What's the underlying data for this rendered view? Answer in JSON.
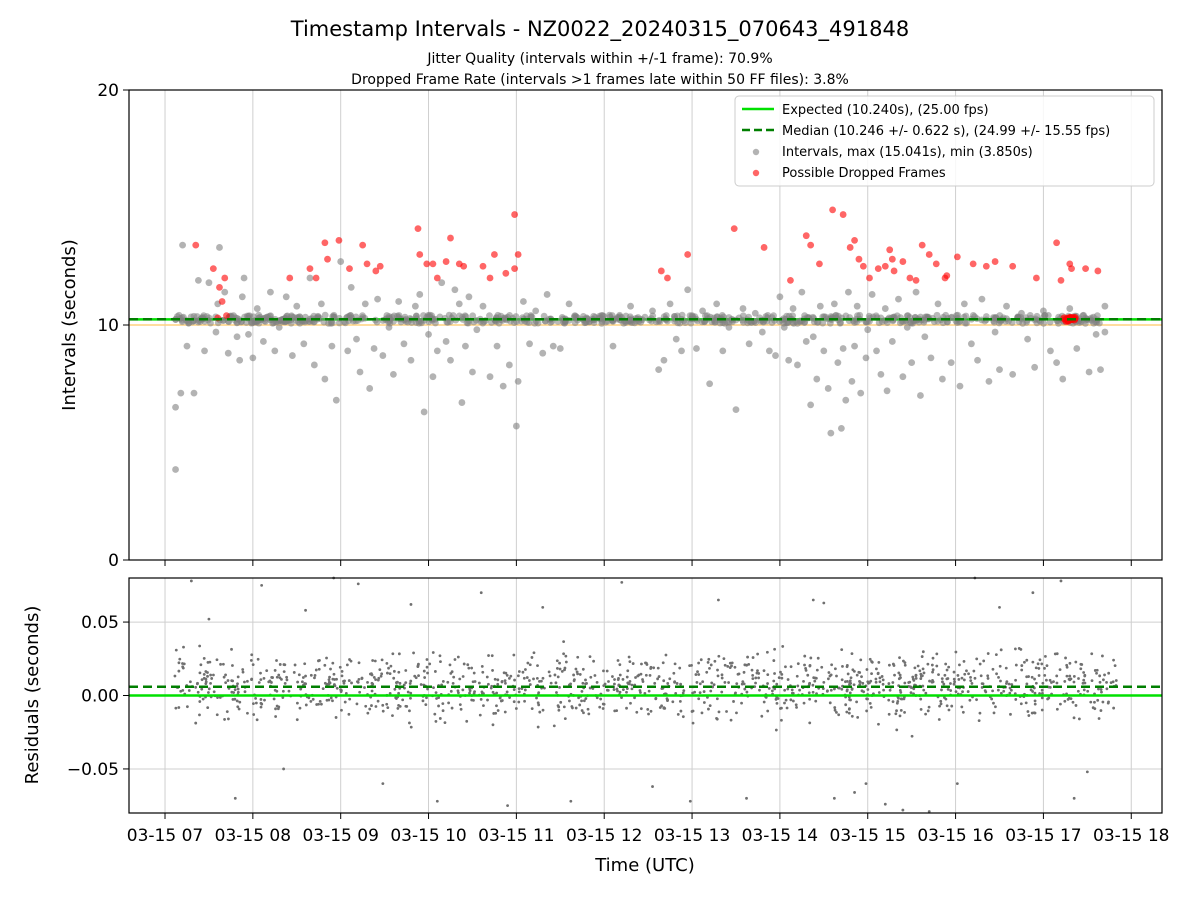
{
  "chart_data": [
    {
      "type": "scatter",
      "title": "Timestamp Intervals - NZ0022_20240315_070643_491848",
      "subtitle_1": "Jitter Quality (intervals within +/-1 frame): 70.9%",
      "subtitle_2": "Dropped Frame Rate (intervals >1 frames late within 50 FF files): 3.8%",
      "ylabel": "Intervals (seconds)",
      "ylim": [
        0,
        20
      ],
      "yticks": [
        0,
        10,
        20
      ],
      "xlim": [
        6.59,
        18.35
      ],
      "grid": "vertical",
      "legend_position": "top-right",
      "expected": {
        "value": 10.24,
        "label": "Expected (10.240s), (25.00 fps)",
        "color": "#00e000"
      },
      "median": {
        "value": 10.246,
        "label": "Median (10.246 +/- 0.622 s), (24.99 +/- 15.55 fps)",
        "color": "#007f00"
      },
      "threshold": {
        "value": 10.0,
        "color": "#ffd27f"
      },
      "intervals_series": {
        "label": "Intervals, max (15.041s), min (3.850s)",
        "color": "#808080",
        "points": [
          [
            7.12,
            3.85
          ],
          [
            7.12,
            6.5
          ],
          [
            7.18,
            7.1
          ],
          [
            7.2,
            13.4
          ],
          [
            7.25,
            9.1
          ],
          [
            7.33,
            7.1
          ],
          [
            7.38,
            11.9
          ],
          [
            7.45,
            8.9
          ],
          [
            7.5,
            11.8
          ],
          [
            7.58,
            9.7
          ],
          [
            7.6,
            10.9
          ],
          [
            7.62,
            13.3
          ],
          [
            7.68,
            11.4
          ],
          [
            7.72,
            8.8
          ],
          [
            7.78,
            10.4
          ],
          [
            7.82,
            9.5
          ],
          [
            7.85,
            8.5
          ],
          [
            7.88,
            11.2
          ],
          [
            7.9,
            12.0
          ],
          [
            7.95,
            9.6
          ],
          [
            8.0,
            8.6
          ],
          [
            8.05,
            10.7
          ],
          [
            8.12,
            9.3
          ],
          [
            8.2,
            11.4
          ],
          [
            8.25,
            8.9
          ],
          [
            8.3,
            9.9
          ],
          [
            8.38,
            11.2
          ],
          [
            8.45,
            8.7
          ],
          [
            8.5,
            10.8
          ],
          [
            8.58,
            9.2
          ],
          [
            8.65,
            12.0
          ],
          [
            8.7,
            8.3
          ],
          [
            8.78,
            10.9
          ],
          [
            8.82,
            7.7
          ],
          [
            8.9,
            9.1
          ],
          [
            8.95,
            6.8
          ],
          [
            9.0,
            12.7
          ],
          [
            9.08,
            8.9
          ],
          [
            9.12,
            11.6
          ],
          [
            9.18,
            9.4
          ],
          [
            9.22,
            8.0
          ],
          [
            9.28,
            10.9
          ],
          [
            9.33,
            7.3
          ],
          [
            9.38,
            9.0
          ],
          [
            9.42,
            11.1
          ],
          [
            9.48,
            8.7
          ],
          [
            9.55,
            9.9
          ],
          [
            9.6,
            7.9
          ],
          [
            9.66,
            11.0
          ],
          [
            9.72,
            9.2
          ],
          [
            9.8,
            8.5
          ],
          [
            9.85,
            10.8
          ],
          [
            9.9,
            11.3
          ],
          [
            9.95,
            6.3
          ],
          [
            10.0,
            9.6
          ],
          [
            10.05,
            7.8
          ],
          [
            10.1,
            8.9
          ],
          [
            10.15,
            11.8
          ],
          [
            10.2,
            9.3
          ],
          [
            10.25,
            8.5
          ],
          [
            10.3,
            11.5
          ],
          [
            10.35,
            10.9
          ],
          [
            10.38,
            6.7
          ],
          [
            10.42,
            9.1
          ],
          [
            10.46,
            11.2
          ],
          [
            10.5,
            8.0
          ],
          [
            10.55,
            9.8
          ],
          [
            10.62,
            10.8
          ],
          [
            10.7,
            7.8
          ],
          [
            10.78,
            9.1
          ],
          [
            10.85,
            7.4
          ],
          [
            10.92,
            8.3
          ],
          [
            11.0,
            5.7
          ],
          [
            11.02,
            7.6
          ],
          [
            11.08,
            11.0
          ],
          [
            11.15,
            9.2
          ],
          [
            11.22,
            10.6
          ],
          [
            11.3,
            8.8
          ],
          [
            11.35,
            11.3
          ],
          [
            11.42,
            9.1
          ],
          [
            11.5,
            9.0
          ],
          [
            11.6,
            10.9
          ],
          [
            11.8,
            10.3
          ],
          [
            12.1,
            9.1
          ],
          [
            12.3,
            10.8
          ],
          [
            12.55,
            10.6
          ],
          [
            12.62,
            8.1
          ],
          [
            12.68,
            8.5
          ],
          [
            12.75,
            10.9
          ],
          [
            12.82,
            9.4
          ],
          [
            12.88,
            8.9
          ],
          [
            12.95,
            11.5
          ],
          [
            13.0,
            10.4
          ],
          [
            13.05,
            9.0
          ],
          [
            13.12,
            10.6
          ],
          [
            13.2,
            7.5
          ],
          [
            13.28,
            10.9
          ],
          [
            13.35,
            8.9
          ],
          [
            13.42,
            9.9
          ],
          [
            13.5,
            6.4
          ],
          [
            13.58,
            10.7
          ],
          [
            13.65,
            9.2
          ],
          [
            13.72,
            10.5
          ],
          [
            13.8,
            9.7
          ],
          [
            13.88,
            8.9
          ],
          [
            13.95,
            8.7
          ],
          [
            14.0,
            11.2
          ],
          [
            14.05,
            9.9
          ],
          [
            14.1,
            8.5
          ],
          [
            14.15,
            10.7
          ],
          [
            14.2,
            8.3
          ],
          [
            14.25,
            11.4
          ],
          [
            14.3,
            9.3
          ],
          [
            14.35,
            6.6
          ],
          [
            14.38,
            9.5
          ],
          [
            14.42,
            7.7
          ],
          [
            14.46,
            10.8
          ],
          [
            14.5,
            8.9
          ],
          [
            14.55,
            7.3
          ],
          [
            14.58,
            5.4
          ],
          [
            14.62,
            10.9
          ],
          [
            14.66,
            8.4
          ],
          [
            14.7,
            5.6
          ],
          [
            14.72,
            9.0
          ],
          [
            14.75,
            6.8
          ],
          [
            14.78,
            11.4
          ],
          [
            14.82,
            7.6
          ],
          [
            14.85,
            9.1
          ],
          [
            14.88,
            10.8
          ],
          [
            14.92,
            7.1
          ],
          [
            14.98,
            8.6
          ],
          [
            15.0,
            9.8
          ],
          [
            15.05,
            11.3
          ],
          [
            15.1,
            8.9
          ],
          [
            15.15,
            7.9
          ],
          [
            15.2,
            10.7
          ],
          [
            15.22,
            7.2
          ],
          [
            15.28,
            9.3
          ],
          [
            15.35,
            11.1
          ],
          [
            15.4,
            7.8
          ],
          [
            15.45,
            9.9
          ],
          [
            15.5,
            8.4
          ],
          [
            15.55,
            11.4
          ],
          [
            15.6,
            7.0
          ],
          [
            15.65,
            9.5
          ],
          [
            15.72,
            8.6
          ],
          [
            15.8,
            10.9
          ],
          [
            15.85,
            7.7
          ],
          [
            15.95,
            8.4
          ],
          [
            16.05,
            7.4
          ],
          [
            16.1,
            10.9
          ],
          [
            16.18,
            9.2
          ],
          [
            16.25,
            8.5
          ],
          [
            16.3,
            11.1
          ],
          [
            16.38,
            7.6
          ],
          [
            16.45,
            9.7
          ],
          [
            16.5,
            8.1
          ],
          [
            16.58,
            10.8
          ],
          [
            16.65,
            7.9
          ],
          [
            16.75,
            10.5
          ],
          [
            16.82,
            9.4
          ],
          [
            16.9,
            8.2
          ],
          [
            17.0,
            10.6
          ],
          [
            17.08,
            8.9
          ],
          [
            17.15,
            8.4
          ],
          [
            17.22,
            7.7
          ],
          [
            17.3,
            10.7
          ],
          [
            17.38,
            9.0
          ],
          [
            17.45,
            10.4
          ],
          [
            17.52,
            8.0
          ],
          [
            17.6,
            9.6
          ],
          [
            17.65,
            8.1
          ],
          [
            17.7,
            10.8
          ],
          [
            17.7,
            9.7
          ]
        ]
      },
      "dropped_series": {
        "label": "Possible Dropped Frames",
        "color": "#ff0000",
        "points": [
          [
            7.35,
            13.4
          ],
          [
            7.55,
            12.4
          ],
          [
            7.6,
            10.3
          ],
          [
            7.62,
            11.6
          ],
          [
            7.65,
            11.0
          ],
          [
            7.68,
            12.0
          ],
          [
            7.7,
            10.4
          ],
          [
            8.42,
            12.0
          ],
          [
            8.65,
            12.4
          ],
          [
            8.72,
            12.0
          ],
          [
            8.82,
            13.5
          ],
          [
            8.85,
            12.8
          ],
          [
            8.98,
            13.6
          ],
          [
            9.1,
            12.4
          ],
          [
            9.25,
            13.4
          ],
          [
            9.3,
            12.6
          ],
          [
            9.4,
            12.3
          ],
          [
            9.45,
            12.5
          ],
          [
            9.88,
            14.1
          ],
          [
            9.9,
            13.0
          ],
          [
            9.98,
            12.6
          ],
          [
            10.05,
            12.6
          ],
          [
            10.1,
            12.0
          ],
          [
            10.2,
            12.7
          ],
          [
            10.25,
            13.7
          ],
          [
            10.35,
            12.6
          ],
          [
            10.4,
            12.5
          ],
          [
            10.62,
            12.5
          ],
          [
            10.7,
            12.0
          ],
          [
            10.75,
            13.0
          ],
          [
            10.88,
            12.2
          ],
          [
            10.98,
            12.4
          ],
          [
            10.98,
            14.7
          ],
          [
            11.02,
            13.0
          ],
          [
            12.65,
            12.3
          ],
          [
            12.72,
            12.0
          ],
          [
            12.95,
            13.0
          ],
          [
            13.48,
            14.1
          ],
          [
            13.82,
            13.3
          ],
          [
            14.12,
            11.9
          ],
          [
            14.3,
            13.8
          ],
          [
            14.35,
            13.4
          ],
          [
            14.45,
            12.6
          ],
          [
            14.6,
            14.9
          ],
          [
            14.72,
            14.7
          ],
          [
            14.8,
            13.3
          ],
          [
            14.85,
            13.6
          ],
          [
            14.9,
            12.8
          ],
          [
            14.95,
            12.5
          ],
          [
            15.02,
            12.0
          ],
          [
            15.12,
            12.4
          ],
          [
            15.2,
            12.5
          ],
          [
            15.25,
            13.2
          ],
          [
            15.28,
            12.8
          ],
          [
            15.3,
            12.3
          ],
          [
            15.4,
            12.7
          ],
          [
            15.48,
            12.0
          ],
          [
            15.55,
            11.9
          ],
          [
            15.62,
            13.4
          ],
          [
            15.7,
            13.0
          ],
          [
            15.78,
            12.6
          ],
          [
            15.88,
            12.0
          ],
          [
            15.9,
            12.1
          ],
          [
            16.02,
            12.9
          ],
          [
            16.2,
            12.6
          ],
          [
            16.35,
            12.5
          ],
          [
            16.45,
            12.7
          ],
          [
            16.65,
            12.5
          ],
          [
            16.92,
            12.0
          ],
          [
            17.15,
            13.5
          ],
          [
            17.2,
            11.9
          ],
          [
            17.3,
            12.6
          ],
          [
            17.32,
            12.4
          ],
          [
            17.48,
            12.4
          ],
          [
            17.62,
            12.3
          ],
          [
            17.25,
            10.25
          ],
          [
            17.28,
            10.3
          ],
          [
            17.32,
            10.25
          ]
        ]
      }
    },
    {
      "type": "scatter",
      "ylabel": "Residuals (seconds)",
      "xlabel": "Time (UTC)",
      "ylim": [
        -0.08,
        0.08
      ],
      "yticks": [
        -0.05,
        0.0,
        0.05
      ],
      "ytick_labels": [
        "−0.05",
        "0.00",
        "0.05"
      ],
      "xlim": [
        6.59,
        18.35
      ],
      "xticks": [
        7,
        8,
        9,
        10,
        11,
        12,
        13,
        14,
        15,
        16,
        17,
        18
      ],
      "xtick_labels": [
        "03-15 07",
        "03-15 08",
        "03-15 09",
        "03-15 10",
        "03-15 11",
        "03-15 12",
        "03-15 13",
        "03-15 14",
        "03-15 15",
        "03-15 16",
        "03-15 17",
        "03-15 18"
      ],
      "grid": "both",
      "expected_residual": 0.0,
      "median_residual": 0.006,
      "residuals_series": {
        "color": "#707070",
        "count": 1300,
        "x_range": [
          7.1,
          17.85
        ],
        "center": 0.006,
        "spread": 0.022,
        "outliers": [
          [
            7.3,
            0.078
          ],
          [
            7.5,
            0.052
          ],
          [
            7.8,
            -0.07
          ],
          [
            8.1,
            0.075
          ],
          [
            8.35,
            -0.05
          ],
          [
            8.6,
            0.058
          ],
          [
            8.92,
            0.08
          ],
          [
            9.2,
            0.076
          ],
          [
            9.48,
            -0.06
          ],
          [
            9.8,
            0.062
          ],
          [
            10.1,
            -0.072
          ],
          [
            10.6,
            0.07
          ],
          [
            10.9,
            -0.075
          ],
          [
            11.3,
            0.06
          ],
          [
            11.62,
            -0.072
          ],
          [
            12.2,
            0.077
          ],
          [
            12.55,
            -0.062
          ],
          [
            12.98,
            -0.072
          ],
          [
            13.3,
            0.065
          ],
          [
            13.62,
            -0.07
          ],
          [
            14.38,
            0.065
          ],
          [
            14.5,
            0.063
          ],
          [
            14.62,
            -0.07
          ],
          [
            14.85,
            -0.066
          ],
          [
            14.98,
            -0.06
          ],
          [
            15.2,
            -0.074
          ],
          [
            15.4,
            -0.078
          ],
          [
            15.7,
            -0.079
          ],
          [
            16.02,
            -0.06
          ],
          [
            16.22,
            0.08
          ],
          [
            16.5,
            0.06
          ],
          [
            16.88,
            0.07
          ],
          [
            17.2,
            0.078
          ],
          [
            17.35,
            -0.07
          ],
          [
            17.5,
            -0.052
          ]
        ]
      }
    }
  ]
}
